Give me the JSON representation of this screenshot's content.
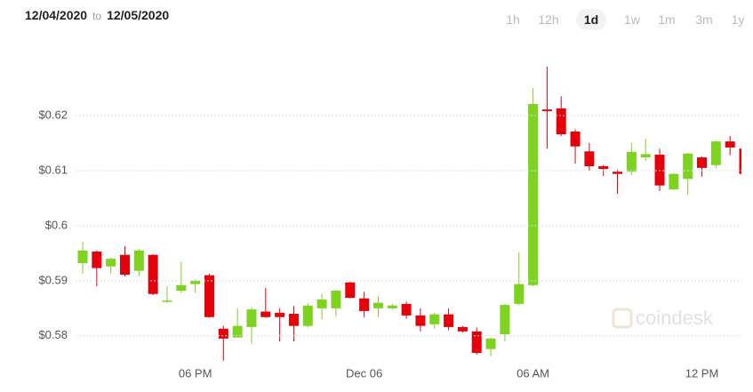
{
  "header": {
    "range_start": "12/04/2020",
    "range_sep": "to",
    "range_end": "12/05/2020",
    "buttons": [
      "1h",
      "12h",
      "1d",
      "1w",
      "1m",
      "3m",
      "1y"
    ],
    "selected": "1d"
  },
  "watermark": "coindesk",
  "chart_data": {
    "type": "candlestick",
    "categories": [
      null,
      null,
      null,
      null,
      null,
      null,
      null,
      null,
      "06 PM",
      null,
      null,
      null,
      null,
      null,
      null,
      null,
      null,
      null,
      null,
      null,
      "Dec 06",
      null,
      null,
      null,
      null,
      null,
      null,
      null,
      null,
      null,
      null,
      null,
      "06 AM",
      null,
      null,
      null,
      null,
      null,
      null,
      null,
      null,
      null,
      null,
      null,
      "12 PM",
      null,
      null,
      null
    ],
    "open": [
      0.5932,
      0.5953,
      0.5926,
      0.5947,
      0.5918,
      0.5947,
      0.5862,
      0.5882,
      0.5894,
      0.591,
      0.5813,
      0.5797,
      0.5816,
      0.5844,
      0.5842,
      0.584,
      0.5818,
      0.585,
      0.585,
      0.5897,
      0.5868,
      0.585,
      0.585,
      0.5858,
      0.5837,
      0.5821,
      0.5839,
      0.5816,
      0.5808,
      0.5776,
      0.5803,
      0.5858,
      0.5892,
      0.6211,
      0.6213,
      0.6171,
      0.6135,
      0.6108,
      0.6098,
      0.6098,
      0.6124,
      0.6129,
      0.6066,
      0.6085,
      0.6124,
      0.611,
      0.6153,
      0.614
    ],
    "high": [
      0.5971,
      0.5955,
      0.5942,
      0.5963,
      0.5958,
      0.5948,
      0.589,
      0.5935,
      0.5902,
      0.5913,
      0.5818,
      0.585,
      0.5852,
      0.5887,
      0.585,
      0.5854,
      0.5859,
      0.5876,
      0.5884,
      0.5898,
      0.588,
      0.5872,
      0.5858,
      0.5862,
      0.585,
      0.5842,
      0.585,
      0.5818,
      0.5815,
      0.5797,
      0.5858,
      0.5952,
      0.625,
      0.6289,
      0.6235,
      0.6175,
      0.615,
      0.611,
      0.6102,
      0.615,
      0.6158,
      0.614,
      0.6095,
      0.6132,
      0.6126,
      0.6155,
      0.6163,
      0.615
    ],
    "low": [
      0.5913,
      0.589,
      0.5913,
      0.5908,
      0.5908,
      0.5874,
      0.586,
      0.5877,
      0.5878,
      0.5833,
      0.5755,
      0.5797,
      0.5785,
      0.5833,
      0.579,
      0.579,
      0.5815,
      0.583,
      0.5835,
      0.5868,
      0.5834,
      0.5834,
      0.5848,
      0.5831,
      0.5808,
      0.5813,
      0.581,
      0.5806,
      0.5766,
      0.5763,
      0.579,
      0.5856,
      0.589,
      0.614,
      0.6163,
      0.6113,
      0.61,
      0.609,
      0.6058,
      0.6092,
      0.6118,
      0.6063,
      0.6065,
      0.6056,
      0.6089,
      0.6105,
      0.6128,
      0.606
    ],
    "close": [
      0.5955,
      0.5923,
      0.594,
      0.5911,
      0.5955,
      0.5876,
      0.5864,
      0.5892,
      0.59,
      0.5834,
      0.5795,
      0.5818,
      0.5848,
      0.5834,
      0.5834,
      0.5818,
      0.5855,
      0.5866,
      0.5882,
      0.5869,
      0.5845,
      0.586,
      0.5855,
      0.5837,
      0.5818,
      0.5839,
      0.5816,
      0.5808,
      0.5769,
      0.5795,
      0.5856,
      0.5894,
      0.6221,
      0.6208,
      0.6166,
      0.6144,
      0.6108,
      0.6103,
      0.6094,
      0.6134,
      0.613,
      0.6073,
      0.6094,
      0.6131,
      0.6105,
      0.6153,
      0.6142,
      0.6094
    ],
    "up_color": "#7ed321",
    "down_color": "#e6000a",
    "ylim": [
      0.5698,
      0.6313
    ],
    "yticks": [
      {
        "value": 0.58,
        "label": "$0.58"
      },
      {
        "value": 0.59,
        "label": "$0.59"
      },
      {
        "value": 0.6,
        "label": "$0.6"
      },
      {
        "value": 0.61,
        "label": "$0.61"
      },
      {
        "value": 0.62,
        "label": "$0.62"
      }
    ],
    "grid": true
  }
}
